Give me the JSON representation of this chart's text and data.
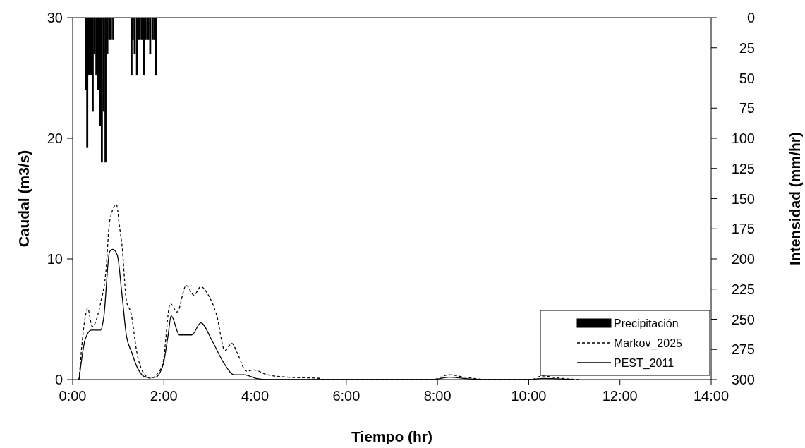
{
  "chart_data": {
    "type": "line",
    "xlabel": "Tiempo (hr)",
    "ylabel": "Caudal (m3/s)",
    "y2label": "Intensidad (mm/hr)",
    "xlim": [
      0,
      14
    ],
    "xticks": [
      {
        "value": 0,
        "label": "0:00"
      },
      {
        "value": 2,
        "label": "2:00"
      },
      {
        "value": 4,
        "label": "4:00"
      },
      {
        "value": 6,
        "label": "6:00"
      },
      {
        "value": 8,
        "label": "8:00"
      },
      {
        "value": 10,
        "label": "10:00"
      },
      {
        "value": 12,
        "label": "12:00"
      },
      {
        "value": 14,
        "label": "14:00"
      }
    ],
    "ylim": [
      0,
      30
    ],
    "yticks": [
      0,
      10,
      20,
      30
    ],
    "y2lim": [
      300,
      0
    ],
    "y2ticks": [
      0,
      25,
      50,
      75,
      100,
      125,
      150,
      175,
      200,
      225,
      250,
      275,
      300
    ],
    "legend": "bottom right",
    "series": [
      {
        "name": "Precipitación",
        "type": "bar",
        "axis": "y2",
        "color": "#000000",
        "x": [
          0.29,
          0.32,
          0.36,
          0.4,
          0.44,
          0.48,
          0.52,
          0.56,
          0.6,
          0.64,
          0.68,
          0.72,
          0.76,
          0.8,
          0.84,
          0.89,
          1.29,
          1.32,
          1.36,
          1.41,
          1.46,
          1.51,
          1.56,
          1.6,
          1.66,
          1.7,
          1.75,
          1.79,
          1.83
        ],
        "values": [
          60,
          108,
          48,
          48,
          78,
          30,
          48,
          60,
          90,
          120,
          78,
          120,
          30,
          18,
          18,
          18,
          48,
          18,
          30,
          48,
          18,
          18,
          48,
          18,
          18,
          30,
          18,
          18,
          48
        ]
      },
      {
        "name": "Markov_2025",
        "line_style": "dashed",
        "color": "#000000",
        "x": [
          0.14,
          0.26,
          0.33,
          0.43,
          0.61,
          0.73,
          0.81,
          0.96,
          1.03,
          1.08,
          1.18,
          1.28,
          1.41,
          1.56,
          1.71,
          1.86,
          1.98,
          2.14,
          2.29,
          2.49,
          2.66,
          2.81,
          2.96,
          3.16,
          3.34,
          3.49,
          3.61,
          3.81,
          3.97,
          4.27,
          4.72,
          5.42,
          5.5,
          7.9,
          8.25,
          8.6,
          9.1,
          10.05,
          10.3,
          10.6,
          11.1
        ],
        "values": [
          0,
          4.8,
          5.9,
          4.4,
          6.3,
          9.0,
          13.1,
          14.5,
          12.6,
          11.2,
          6.5,
          5.5,
          2.2,
          0.5,
          0.1,
          0.5,
          1.4,
          6.3,
          5.6,
          7.8,
          7.0,
          7.7,
          7.1,
          5.3,
          2.4,
          3.0,
          2.2,
          0.7,
          0.8,
          0.4,
          0.2,
          0.1,
          0,
          0,
          0.4,
          0.2,
          0,
          0,
          0.3,
          0.15,
          0
        ]
      },
      {
        "name": "PEST_2011",
        "line_style": "solid",
        "color": "#000000",
        "x": [
          0.14,
          0.28,
          0.41,
          0.61,
          0.68,
          0.81,
          0.88,
          0.98,
          1.08,
          1.18,
          1.28,
          1.43,
          1.61,
          1.81,
          1.98,
          2.09,
          2.16,
          2.34,
          2.61,
          2.81,
          3.06,
          3.31,
          3.54,
          3.76,
          4.02,
          4.27,
          7.9,
          8.25,
          8.7,
          9.1,
          10.05,
          10.3,
          11.0
        ],
        "values": [
          0,
          3.4,
          4.1,
          4.1,
          5.1,
          10.6,
          10.8,
          10.3,
          7.1,
          3.6,
          2.4,
          0.9,
          0.2,
          0.2,
          1.2,
          3.6,
          5.3,
          3.7,
          3.7,
          4.7,
          3.2,
          1.4,
          0.4,
          0.4,
          0.1,
          0,
          0,
          0.2,
          0.05,
          0,
          0,
          0.1,
          0
        ]
      }
    ]
  }
}
